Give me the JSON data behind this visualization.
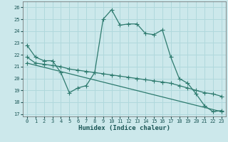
{
  "xlabel": "Humidex (Indice chaleur)",
  "bg_color": "#cce8eb",
  "line_color": "#2d7a6e",
  "grid_color": "#b0d8dc",
  "xlim": [
    -0.5,
    23.5
  ],
  "ylim": [
    16.8,
    26.5
  ],
  "line1_x": [
    0,
    1,
    2,
    3,
    4,
    5,
    6,
    7,
    8,
    9,
    10,
    11,
    12,
    13,
    14,
    15,
    16,
    17,
    18,
    19,
    20,
    21,
    22,
    23
  ],
  "line1_y": [
    22.8,
    21.8,
    21.5,
    21.5,
    20.5,
    18.8,
    19.2,
    19.4,
    20.5,
    25.0,
    25.8,
    24.5,
    24.6,
    24.6,
    23.8,
    23.7,
    24.1,
    21.8,
    20.0,
    19.6,
    18.7,
    17.7,
    17.2,
    17.3
  ],
  "line2_x": [
    0,
    1,
    2,
    3,
    4,
    5,
    6,
    7,
    8,
    9,
    10,
    11,
    12,
    13,
    14,
    15,
    16,
    17,
    18,
    19,
    20,
    21,
    22,
    23
  ],
  "line2_y": [
    21.8,
    21.3,
    21.2,
    21.1,
    21.0,
    20.8,
    20.7,
    20.6,
    20.5,
    20.4,
    20.3,
    20.2,
    20.1,
    20.0,
    19.9,
    19.8,
    19.7,
    19.6,
    19.4,
    19.2,
    19.0,
    18.8,
    18.7,
    18.5
  ],
  "line3_x": [
    0,
    23
  ],
  "line3_y": [
    21.3,
    17.2
  ]
}
